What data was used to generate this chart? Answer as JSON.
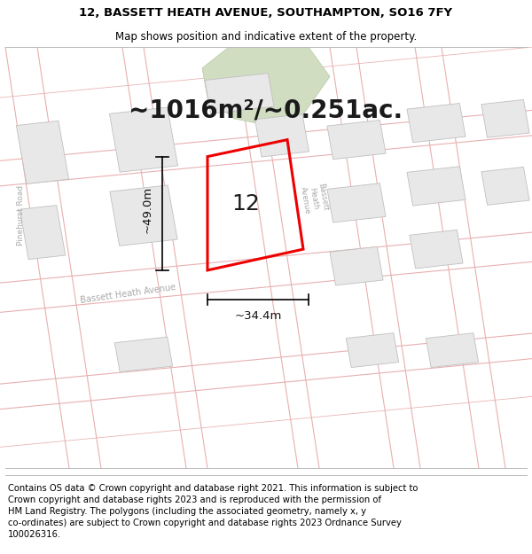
{
  "title": "12, BASSETT HEATH AVENUE, SOUTHAMPTON, SO16 7FY",
  "subtitle": "Map shows position and indicative extent of the property.",
  "footer": "Contains OS data © Crown copyright and database right 2021. This information is subject to\nCrown copyright and database rights 2023 and is reproduced with the permission of\nHM Land Registry. The polygons (including the associated geometry, namely x, y\nco-ordinates) are subject to Crown copyright and database rights 2023 Ordnance Survey\n100026316.",
  "area_text": "~1016m²/~0.251ac.",
  "dimension_width": "~34.4m",
  "dimension_height": "~49.0m",
  "property_number": "12",
  "red_stroke": "#ee0000",
  "title_fontsize": 9.5,
  "subtitle_fontsize": 8.5,
  "footer_fontsize": 7.2,
  "area_fontsize": 20,
  "dim_fontsize": 9.5,
  "number_fontsize": 18,
  "road_label_fontsize": 7,
  "road_color": "#e8b0b0",
  "building_fill": "#e8e8e8",
  "building_edge": "#c0c0c0",
  "green_fill": "#d0ddc0",
  "map_bg": "#f8f8f8"
}
